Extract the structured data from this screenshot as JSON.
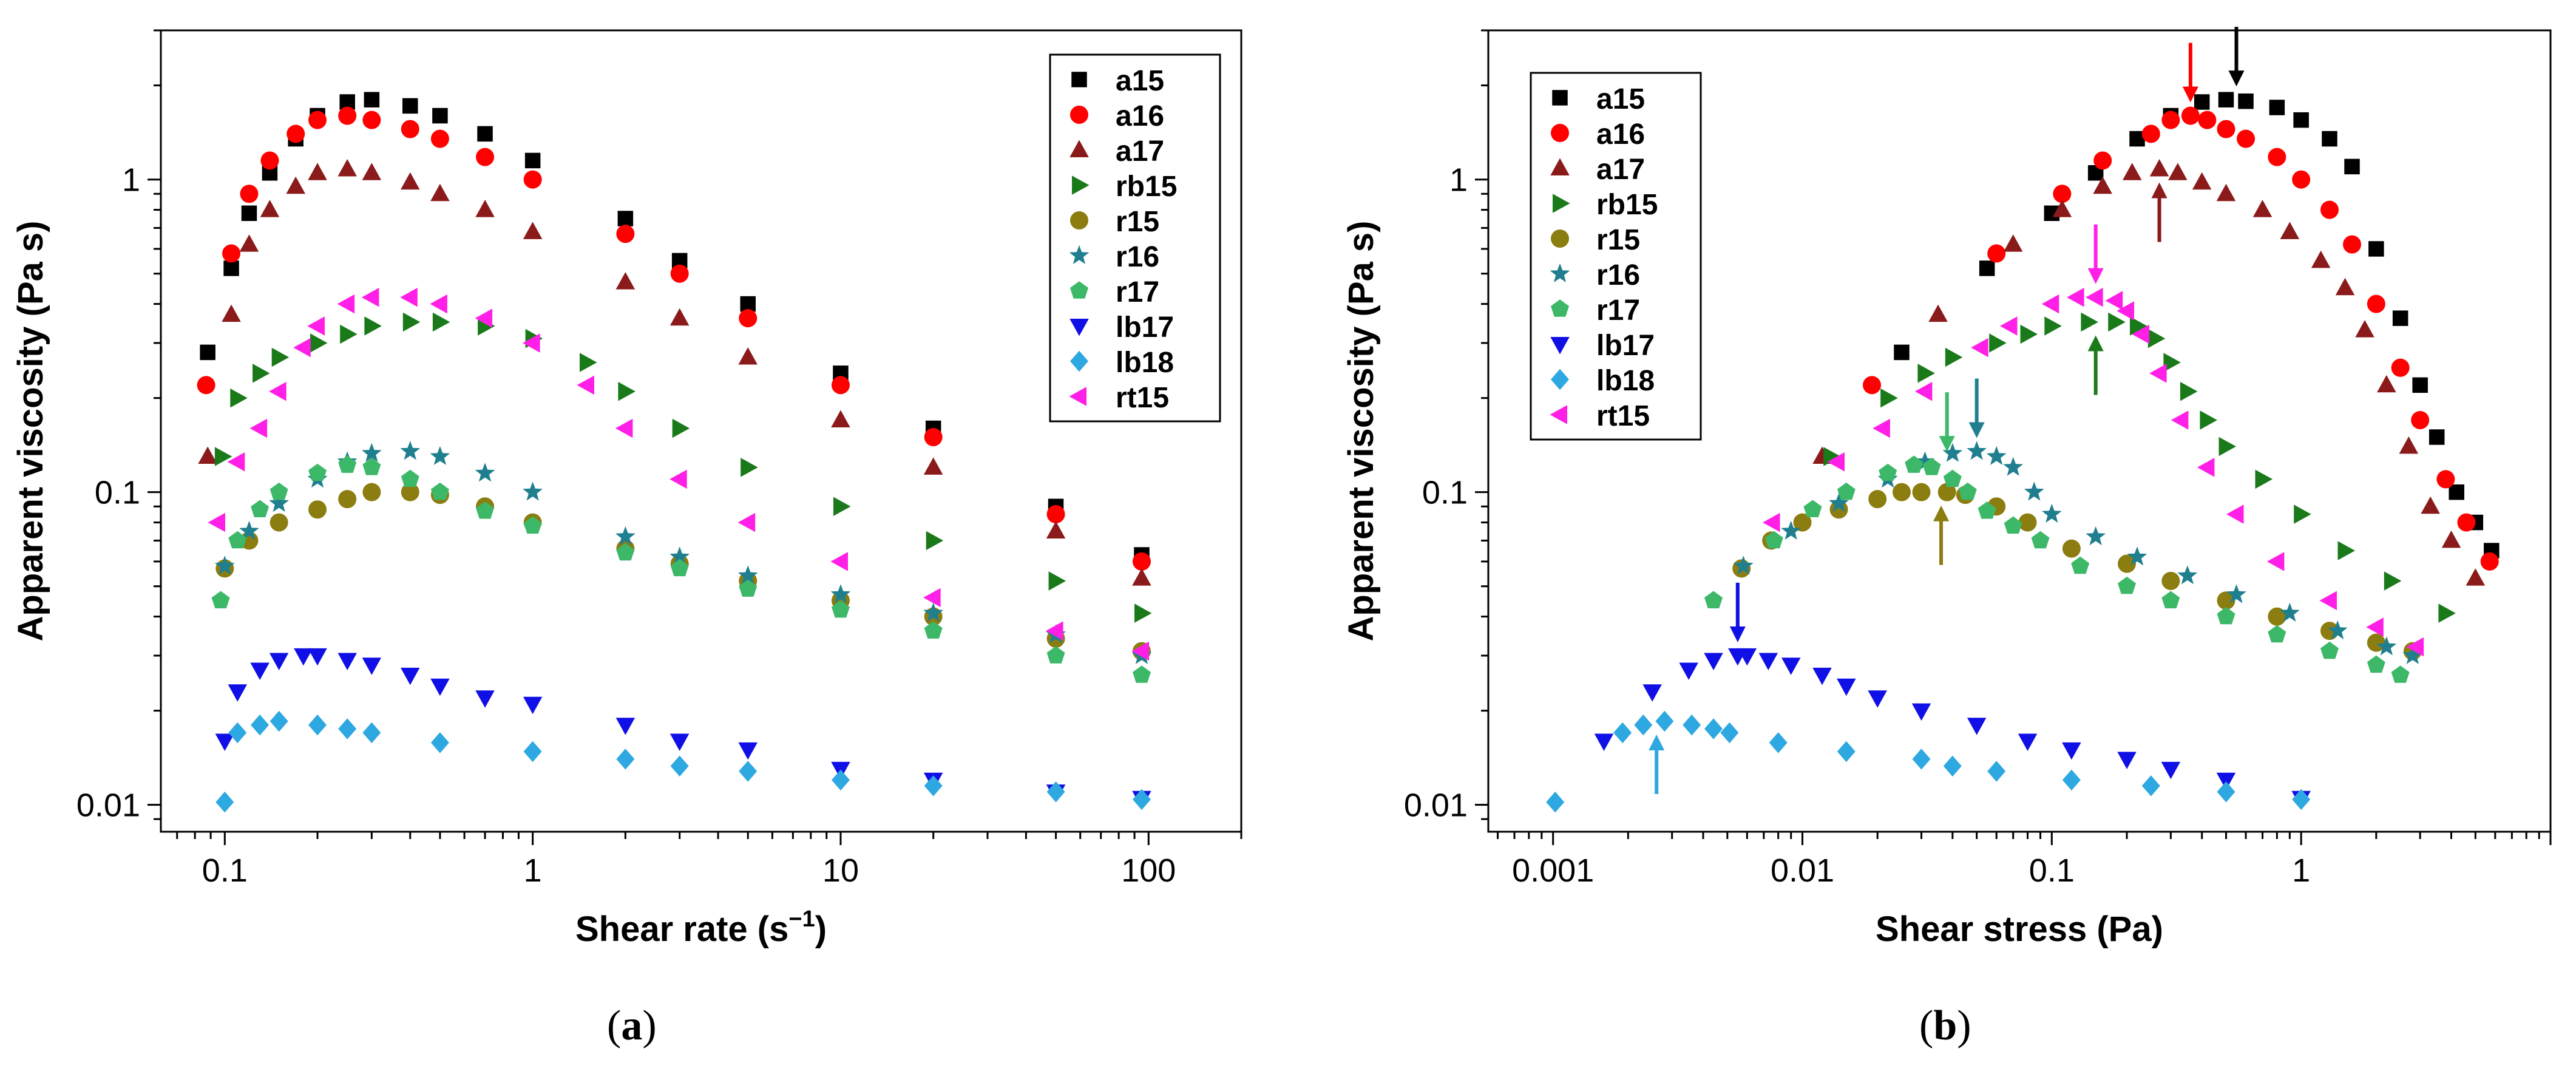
{
  "figure": {
    "panel_labels": [
      {
        "open": "(",
        "letter": "a",
        "close": ")"
      },
      {
        "open": "(",
        "letter": "b",
        "close": ")"
      }
    ]
  },
  "colors": {
    "a15": "#000000",
    "a16": "#ff0000",
    "a17": "#8b1a1a",
    "rb15": "#1a7a1a",
    "r15": "#8b7d10",
    "r16": "#1f7f8f",
    "r17": "#3cb868",
    "lb17": "#1010e6",
    "lb18": "#2ea8e0",
    "rt15": "#ff1fe6"
  },
  "chart_data": [
    {
      "type": "scatter",
      "id": "a",
      "xlabel": "Shear rate (s",
      "xlabel_sup": "−1",
      "xlabel_close": ")",
      "ylabel": "Apparent viscosity (Pa s)",
      "xscale": "log",
      "yscale": "log",
      "xlim": [
        0.062,
        200
      ],
      "ylim": [
        0.0082,
        3.0
      ],
      "xticks": [
        {
          "v": 0.1,
          "label": "0.1"
        },
        {
          "v": 1,
          "label": "1"
        },
        {
          "v": 10,
          "label": "10"
        },
        {
          "v": 100,
          "label": "100"
        }
      ],
      "yticks": [
        {
          "v": 0.01,
          "label": "0.01"
        },
        {
          "v": 0.1,
          "label": "0.1"
        },
        {
          "v": 1,
          "label": "1"
        }
      ],
      "grid": false,
      "legend_position": "top-right",
      "series": [
        {
          "name": "a15",
          "marker": "square",
          "x": [
            0.088,
            0.105,
            0.12,
            0.14,
            0.17,
            0.2,
            0.25,
            0.3,
            0.4,
            0.5,
            0.7,
            1,
            2,
            3,
            5,
            10,
            20,
            50,
            95
          ],
          "y": [
            0.28,
            0.52,
            0.78,
            1.05,
            1.35,
            1.6,
            1.77,
            1.8,
            1.72,
            1.6,
            1.4,
            1.15,
            0.75,
            0.55,
            0.4,
            0.24,
            0.16,
            0.09,
            0.063
          ]
        },
        {
          "name": "a16",
          "marker": "circle",
          "x": [
            0.087,
            0.105,
            0.12,
            0.14,
            0.17,
            0.2,
            0.25,
            0.3,
            0.4,
            0.5,
            0.7,
            1,
            2,
            3,
            5,
            10,
            20,
            50,
            95
          ],
          "y": [
            0.22,
            0.58,
            0.9,
            1.15,
            1.4,
            1.55,
            1.6,
            1.55,
            1.45,
            1.35,
            1.18,
            1.0,
            0.67,
            0.5,
            0.36,
            0.22,
            0.15,
            0.085,
            0.06
          ]
        },
        {
          "name": "a17",
          "marker": "triangle-up",
          "x": [
            0.088,
            0.105,
            0.12,
            0.14,
            0.17,
            0.2,
            0.25,
            0.3,
            0.4,
            0.5,
            0.7,
            1,
            2,
            3,
            5,
            10,
            20,
            50,
            95
          ],
          "y": [
            0.13,
            0.37,
            0.62,
            0.8,
            0.95,
            1.05,
            1.08,
            1.05,
            0.98,
            0.9,
            0.8,
            0.68,
            0.47,
            0.36,
            0.27,
            0.17,
            0.12,
            0.075,
            0.053
          ]
        },
        {
          "name": "rb15",
          "marker": "triangle-right",
          "x": [
            0.098,
            0.11,
            0.13,
            0.15,
            0.2,
            0.25,
            0.3,
            0.4,
            0.5,
            0.7,
            1,
            1.5,
            2,
            3,
            5,
            10,
            20,
            50,
            95
          ],
          "y": [
            0.13,
            0.2,
            0.24,
            0.27,
            0.3,
            0.32,
            0.34,
            0.35,
            0.35,
            0.34,
            0.31,
            0.26,
            0.21,
            0.16,
            0.12,
            0.09,
            0.07,
            0.052,
            0.041
          ]
        },
        {
          "name": "r15",
          "marker": "circle",
          "x": [
            0.1,
            0.12,
            0.15,
            0.2,
            0.25,
            0.3,
            0.4,
            0.5,
            0.7,
            1,
            2,
            3,
            5,
            10,
            20,
            50,
            95
          ],
          "y": [
            0.057,
            0.07,
            0.08,
            0.088,
            0.095,
            0.1,
            0.1,
            0.098,
            0.09,
            0.08,
            0.066,
            0.059,
            0.052,
            0.045,
            0.04,
            0.034,
            0.031
          ]
        },
        {
          "name": "r16",
          "marker": "star",
          "x": [
            0.1,
            0.12,
            0.15,
            0.2,
            0.25,
            0.3,
            0.4,
            0.5,
            0.7,
            1,
            2,
            3,
            5,
            10,
            20,
            50,
            95
          ],
          "y": [
            0.058,
            0.075,
            0.092,
            0.11,
            0.125,
            0.133,
            0.135,
            0.13,
            0.115,
            0.1,
            0.072,
            0.062,
            0.054,
            0.047,
            0.041,
            0.035,
            0.03
          ]
        },
        {
          "name": "r17",
          "marker": "pentagon",
          "x": [
            0.097,
            0.11,
            0.13,
            0.15,
            0.2,
            0.25,
            0.3,
            0.4,
            0.5,
            0.7,
            1,
            2,
            3,
            5,
            10,
            20,
            50,
            95
          ],
          "y": [
            0.045,
            0.07,
            0.088,
            0.1,
            0.115,
            0.122,
            0.12,
            0.11,
            0.1,
            0.087,
            0.078,
            0.064,
            0.057,
            0.049,
            0.042,
            0.036,
            0.03,
            0.026
          ]
        },
        {
          "name": "lb17",
          "marker": "triangle-down",
          "x": [
            0.1,
            0.11,
            0.13,
            0.15,
            0.18,
            0.2,
            0.25,
            0.3,
            0.4,
            0.5,
            0.7,
            1,
            2,
            3,
            5,
            10,
            20,
            50,
            95
          ],
          "y": [
            0.016,
            0.023,
            0.027,
            0.029,
            0.03,
            0.03,
            0.029,
            0.028,
            0.026,
            0.024,
            0.022,
            0.021,
            0.018,
            0.016,
            0.015,
            0.013,
            0.012,
            0.011,
            0.0105
          ]
        },
        {
          "name": "lb18",
          "marker": "diamond",
          "x": [
            0.1,
            0.11,
            0.13,
            0.15,
            0.2,
            0.25,
            0.3,
            0.5,
            1,
            2,
            3,
            5,
            10,
            20,
            50,
            95
          ],
          "y": [
            0.0102,
            0.017,
            0.018,
            0.0185,
            0.018,
            0.0175,
            0.017,
            0.0158,
            0.0148,
            0.014,
            0.0133,
            0.0128,
            0.012,
            0.0115,
            0.011,
            0.0104
          ]
        },
        {
          "name": "rt15",
          "marker": "triangle-left",
          "x": [
            0.095,
            0.11,
            0.13,
            0.15,
            0.18,
            0.2,
            0.25,
            0.3,
            0.4,
            0.5,
            0.7,
            1,
            1.5,
            2,
            3,
            5,
            10,
            20,
            50,
            95
          ],
          "y": [
            0.08,
            0.125,
            0.16,
            0.21,
            0.29,
            0.34,
            0.4,
            0.42,
            0.42,
            0.4,
            0.36,
            0.3,
            0.22,
            0.16,
            0.11,
            0.08,
            0.06,
            0.046,
            0.036,
            0.031
          ]
        }
      ]
    },
    {
      "type": "scatter",
      "id": "b",
      "xlabel": "Shear stress (Pa)",
      "ylabel": "Apparent viscosity (Pa s)",
      "xscale": "log",
      "yscale": "log",
      "xlim": [
        0.00055,
        10
      ],
      "ylim": [
        0.0082,
        3.0
      ],
      "xticks": [
        {
          "v": 0.001,
          "label": "0.001"
        },
        {
          "v": 0.01,
          "label": "0.01"
        },
        {
          "v": 0.1,
          "label": "0.1"
        },
        {
          "v": 1,
          "label": "1"
        }
      ],
      "yticks": [
        {
          "v": 0.01,
          "label": "0.01"
        },
        {
          "v": 0.1,
          "label": "0.1"
        },
        {
          "v": 1,
          "label": "1"
        }
      ],
      "grid": false,
      "legend_position": "top-left",
      "series": [
        {
          "name": "a15",
          "marker": "square",
          "x": [
            0.025,
            0.055,
            0.1,
            0.15,
            0.22,
            0.3,
            0.4,
            0.5,
            0.6,
            0.8,
            1.0,
            1.3,
            1.6,
            2.0,
            2.5,
            3.0,
            3.5,
            4.2,
            5.0,
            5.8
          ],
          "y": [
            0.28,
            0.52,
            0.78,
            1.05,
            1.35,
            1.6,
            1.77,
            1.8,
            1.78,
            1.7,
            1.55,
            1.35,
            1.1,
            0.6,
            0.36,
            0.22,
            0.15,
            0.1,
            0.08,
            0.065
          ]
        },
        {
          "name": "a16",
          "marker": "circle",
          "x": [
            0.019,
            0.06,
            0.11,
            0.16,
            0.25,
            0.3,
            0.36,
            0.42,
            0.5,
            0.6,
            0.8,
            1.0,
            1.3,
            1.6,
            2.0,
            2.5,
            3.0,
            3.8,
            4.6,
            5.7
          ],
          "y": [
            0.22,
            0.58,
            0.9,
            1.15,
            1.4,
            1.55,
            1.6,
            1.55,
            1.45,
            1.35,
            1.18,
            1.0,
            0.8,
            0.62,
            0.4,
            0.25,
            0.17,
            0.11,
            0.08,
            0.06
          ]
        },
        {
          "name": "a17",
          "marker": "triangle-up",
          "x": [
            0.012,
            0.035,
            0.07,
            0.11,
            0.16,
            0.21,
            0.27,
            0.32,
            0.4,
            0.5,
            0.7,
            0.9,
            1.2,
            1.5,
            1.8,
            2.2,
            2.7,
            3.3,
            4.0,
            5.0
          ],
          "y": [
            0.13,
            0.37,
            0.62,
            0.8,
            0.95,
            1.05,
            1.08,
            1.05,
            0.98,
            0.9,
            0.8,
            0.68,
            0.55,
            0.45,
            0.33,
            0.22,
            0.14,
            0.09,
            0.07,
            0.053
          ]
        },
        {
          "name": "rb15",
          "marker": "triangle-right",
          "x": [
            0.013,
            0.022,
            0.031,
            0.04,
            0.06,
            0.08,
            0.1,
            0.14,
            0.18,
            0.22,
            0.26,
            0.3,
            0.35,
            0.42,
            0.5,
            0.7,
            1.0,
            1.5,
            2.3,
            3.8
          ],
          "y": [
            0.13,
            0.2,
            0.24,
            0.27,
            0.3,
            0.32,
            0.34,
            0.35,
            0.35,
            0.34,
            0.31,
            0.26,
            0.21,
            0.17,
            0.14,
            0.11,
            0.085,
            0.065,
            0.052,
            0.041
          ]
        },
        {
          "name": "r15",
          "marker": "circle",
          "x": [
            0.0057,
            0.0075,
            0.01,
            0.014,
            0.02,
            0.025,
            0.03,
            0.038,
            0.045,
            0.06,
            0.08,
            0.12,
            0.2,
            0.3,
            0.5,
            0.8,
            1.3,
            2.0,
            2.8
          ],
          "y": [
            0.057,
            0.07,
            0.08,
            0.088,
            0.095,
            0.1,
            0.1,
            0.1,
            0.098,
            0.09,
            0.08,
            0.066,
            0.059,
            0.052,
            0.045,
            0.04,
            0.036,
            0.033,
            0.031
          ]
        },
        {
          "name": "r16",
          "marker": "star",
          "x": [
            0.0058,
            0.009,
            0.014,
            0.022,
            0.031,
            0.04,
            0.05,
            0.06,
            0.07,
            0.085,
            0.1,
            0.15,
            0.22,
            0.35,
            0.55,
            0.9,
            1.4,
            2.2,
            2.8
          ],
          "y": [
            0.058,
            0.075,
            0.092,
            0.11,
            0.125,
            0.133,
            0.135,
            0.13,
            0.12,
            0.1,
            0.085,
            0.072,
            0.062,
            0.054,
            0.047,
            0.041,
            0.036,
            0.032,
            0.03
          ]
        },
        {
          "name": "r17",
          "marker": "pentagon",
          "x": [
            0.0044,
            0.0077,
            0.011,
            0.015,
            0.022,
            0.028,
            0.033,
            0.04,
            0.046,
            0.055,
            0.07,
            0.09,
            0.13,
            0.2,
            0.3,
            0.5,
            0.8,
            1.3,
            2.0,
            2.5
          ],
          "y": [
            0.045,
            0.07,
            0.088,
            0.1,
            0.115,
            0.122,
            0.12,
            0.11,
            0.1,
            0.087,
            0.078,
            0.07,
            0.058,
            0.05,
            0.045,
            0.04,
            0.035,
            0.031,
            0.028,
            0.026
          ]
        },
        {
          "name": "lb17",
          "marker": "triangle-down",
          "x": [
            0.0016,
            0.0025,
            0.0035,
            0.0044,
            0.0055,
            0.006,
            0.0073,
            0.009,
            0.012,
            0.015,
            0.02,
            0.03,
            0.05,
            0.08,
            0.12,
            0.2,
            0.3,
            0.5,
            1.0
          ],
          "y": [
            0.016,
            0.023,
            0.027,
            0.029,
            0.03,
            0.03,
            0.029,
            0.028,
            0.026,
            0.024,
            0.022,
            0.02,
            0.018,
            0.016,
            0.015,
            0.014,
            0.013,
            0.012,
            0.0105
          ]
        },
        {
          "name": "lb18",
          "marker": "diamond",
          "x": [
            0.00102,
            0.0019,
            0.0023,
            0.0028,
            0.0036,
            0.0044,
            0.0051,
            0.008,
            0.015,
            0.03,
            0.04,
            0.06,
            0.12,
            0.25,
            0.5,
            1.0
          ],
          "y": [
            0.0102,
            0.017,
            0.018,
            0.0185,
            0.018,
            0.0175,
            0.017,
            0.0158,
            0.0148,
            0.014,
            0.0133,
            0.0128,
            0.012,
            0.0115,
            0.011,
            0.0104
          ]
        },
        {
          "name": "rt15",
          "marker": "triangle-left",
          "x": [
            0.0076,
            0.0138,
            0.021,
            0.031,
            0.052,
            0.068,
            0.1,
            0.126,
            0.15,
            0.18,
            0.2,
            0.23,
            0.27,
            0.33,
            0.42,
            0.55,
            0.8,
            1.3,
            2.0,
            2.9
          ],
          "y": [
            0.08,
            0.125,
            0.16,
            0.21,
            0.29,
            0.34,
            0.4,
            0.42,
            0.42,
            0.41,
            0.38,
            0.32,
            0.24,
            0.17,
            0.12,
            0.085,
            0.06,
            0.045,
            0.037,
            0.032
          ]
        }
      ],
      "annotations": [
        {
          "series": "a15",
          "x": 0.55,
          "y": 1.8,
          "direction": "down"
        },
        {
          "series": "a16",
          "x": 0.36,
          "y": 1.6,
          "direction": "down"
        },
        {
          "series": "a17",
          "x": 0.27,
          "y": 1.08,
          "direction": "up"
        },
        {
          "series": "rt15",
          "x": 0.15,
          "y": 0.42,
          "direction": "down"
        },
        {
          "series": "rb15",
          "x": 0.15,
          "y": 0.35,
          "direction": "up"
        },
        {
          "series": "r17",
          "x": 0.038,
          "y": 0.122,
          "direction": "down"
        },
        {
          "series": "r16",
          "x": 0.05,
          "y": 0.135,
          "direction": "down"
        },
        {
          "series": "r15",
          "x": 0.036,
          "y": 0.1,
          "direction": "up"
        },
        {
          "series": "lb17",
          "x": 0.0055,
          "y": 0.03,
          "direction": "down"
        },
        {
          "series": "lb18",
          "x": 0.0026,
          "y": 0.0185,
          "direction": "up"
        }
      ]
    }
  ]
}
